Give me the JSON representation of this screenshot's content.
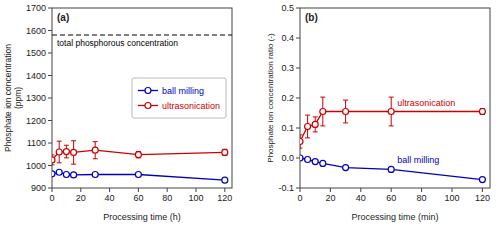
{
  "chart_data": [
    {
      "type": "line",
      "title": "(a)",
      "xlabel": "Processing time  (h)",
      "ylabel": "Phosphate ion concentration\n(ppm)",
      "x": [
        0,
        5,
        10,
        15,
        30,
        60,
        120
      ],
      "series": [
        {
          "name": "ball milling",
          "color": "#0000bb",
          "marker": "circle",
          "line_style": "solid",
          "values": [
            963,
            970,
            960,
            958,
            960,
            960,
            935
          ],
          "errors": [
            5,
            5,
            5,
            5,
            5,
            5,
            5
          ]
        },
        {
          "name": "ultrasonication",
          "color": "#cc0000",
          "marker": "circle",
          "line_style": "solid",
          "values": [
            1025,
            1060,
            1062,
            1058,
            1068,
            1048,
            1058
          ],
          "errors": [
            22,
            48,
            28,
            52,
            38,
            14,
            14
          ]
        }
      ],
      "xlim": [
        0,
        125
      ],
      "xticks": [
        0,
        20,
        40,
        60,
        80,
        100,
        120
      ],
      "ylim": [
        900,
        1700
      ],
      "yticks": [
        900,
        1000,
        1100,
        1200,
        1300,
        1400,
        1500,
        1600,
        1700
      ],
      "grid": false,
      "legend": "right",
      "annotations": [
        {
          "text": "total phosphorous concentration",
          "y": 1580,
          "line_style": "dashed",
          "color": "black"
        }
      ]
    },
    {
      "type": "line",
      "title": "(b)",
      "xlabel": "Processing time  (min)",
      "ylabel": "Phosphate ion concentration ratio (-)",
      "x": [
        0,
        5,
        10,
        15,
        30,
        60,
        120
      ],
      "series": [
        {
          "name": "ball milling",
          "color": "#0000bb",
          "marker": "circle",
          "line_style": "solid",
          "values": [
            0.0,
            -0.005,
            -0.012,
            -0.018,
            -0.032,
            -0.038,
            -0.072
          ],
          "errors": [
            0.004,
            0.004,
            0.004,
            0.004,
            0.004,
            0.004,
            0.004
          ]
        },
        {
          "name": "ultrasonication",
          "color": "#cc0000",
          "marker": "circle",
          "line_style": "solid",
          "values": [
            0.055,
            0.105,
            0.112,
            0.155,
            0.155,
            0.155,
            0.155
          ],
          "errors": [
            0.022,
            0.038,
            0.025,
            0.048,
            0.038,
            0.048,
            0.01
          ]
        }
      ],
      "xlim": [
        0,
        125
      ],
      "xticks": [
        0,
        20,
        40,
        60,
        80,
        100,
        120
      ],
      "ylim": [
        -0.1,
        0.5
      ],
      "yticks": [
        -0.1,
        {
          "value": 0.0,
          "label": "0.0"
        },
        0.1,
        0.2,
        0.3,
        0.4,
        0.5
      ],
      "grid": false
    }
  ]
}
